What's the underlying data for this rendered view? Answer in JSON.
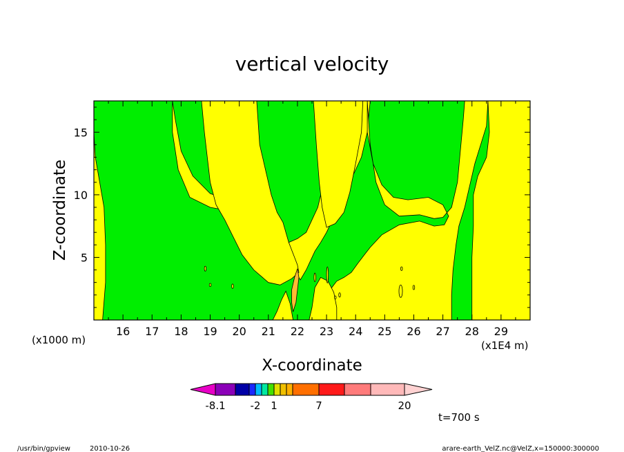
{
  "chart_data": {
    "type": "contour",
    "title": "vertical velocity",
    "xlabel": "X-coordinate",
    "ylabel": "Z-coordinate",
    "x_unit": "(x1E4 m)",
    "y_unit": "(x1000 m)",
    "xlim": [
      15,
      30
    ],
    "ylim": [
      0,
      17.5
    ],
    "xticks": [
      16,
      17,
      18,
      19,
      20,
      21,
      22,
      23,
      24,
      25,
      26,
      27,
      28,
      29
    ],
    "yticks": [
      5,
      10,
      15
    ],
    "colors": {
      "green": "#00ee00",
      "yellow": "#ffff00",
      "orange": "#ffbb33",
      "line": "#000000"
    },
    "yellow_regions": [
      [
        [
          15,
          17.5
        ],
        [
          15,
          15
        ],
        [
          15.05,
          13
        ],
        [
          15.2,
          11
        ],
        [
          15.35,
          9
        ],
        [
          15.4,
          6
        ],
        [
          15.4,
          3
        ],
        [
          15.3,
          0
        ],
        [
          15,
          0
        ]
      ],
      [
        [
          17.7,
          17.5
        ],
        [
          17.8,
          16
        ],
        [
          18,
          13.5
        ],
        [
          18.4,
          11.5
        ],
        [
          19,
          10.1
        ],
        [
          19.6,
          9.6
        ],
        [
          20.1,
          8.6
        ],
        [
          20.4,
          7
        ],
        [
          20.7,
          5.5
        ],
        [
          21.2,
          4.5
        ],
        [
          21.6,
          3.8
        ],
        [
          22,
          3.6
        ],
        [
          22.1,
          3.2
        ],
        [
          22.3,
          4
        ],
        [
          22.6,
          5.5
        ],
        [
          22.8,
          6.2
        ],
        [
          23,
          7
        ],
        [
          23.2,
          8
        ],
        [
          23.5,
          9
        ],
        [
          23.8,
          11
        ],
        [
          24.2,
          13
        ],
        [
          24.4,
          15
        ],
        [
          24.5,
          17.5
        ],
        [
          23.5,
          17.5
        ],
        [
          23.4,
          15
        ],
        [
          23.2,
          13
        ],
        [
          22.9,
          11
        ],
        [
          22.7,
          9
        ],
        [
          22.5,
          8
        ],
        [
          22.3,
          7
        ],
        [
          22.0,
          6.5
        ],
        [
          21.7,
          6.2
        ],
        [
          21.5,
          5.5
        ],
        [
          21.4,
          4.3
        ],
        [
          21.0,
          4.8
        ],
        [
          20.5,
          6
        ],
        [
          20.2,
          7.5
        ],
        [
          19.7,
          8.7
        ],
        [
          19,
          9
        ],
        [
          18.3,
          9.8
        ],
        [
          17.9,
          12
        ],
        [
          17.7,
          15
        ]
      ],
      [
        [
          20.6,
          17.5
        ],
        [
          20.7,
          14
        ],
        [
          20.9,
          12
        ],
        [
          21.1,
          10
        ],
        [
          21.3,
          8.6
        ],
        [
          21.5,
          7.8
        ],
        [
          21.7,
          6.2
        ],
        [
          21.9,
          5
        ],
        [
          22,
          4.4
        ],
        [
          22.05,
          3.8
        ],
        [
          21.8,
          3.3
        ],
        [
          21.4,
          2.8
        ],
        [
          21.0,
          3
        ],
        [
          20.5,
          4
        ],
        [
          20.1,
          5.2
        ],
        [
          19.8,
          6.6
        ],
        [
          19.5,
          8
        ],
        [
          19.2,
          9.2
        ],
        [
          19.0,
          11
        ],
        [
          18.9,
          13
        ],
        [
          18.8,
          15
        ],
        [
          18.7,
          17.5
        ]
      ],
      [
        [
          22.55,
          17.5
        ],
        [
          22.65,
          14
        ],
        [
          22.75,
          11
        ],
        [
          22.85,
          9
        ],
        [
          23.0,
          7.4
        ],
        [
          23.3,
          7.7
        ],
        [
          23.6,
          8.6
        ],
        [
          23.8,
          10.2
        ],
        [
          24.0,
          12.5
        ],
        [
          24.2,
          15
        ],
        [
          24.25,
          17.5
        ],
        [
          22.55,
          17.5
        ]
      ],
      [
        [
          24.4,
          17.5
        ],
        [
          24.5,
          14
        ],
        [
          24.7,
          11
        ],
        [
          25,
          9.2
        ],
        [
          25.5,
          8.3
        ],
        [
          26.2,
          8.4
        ],
        [
          26.7,
          8.1
        ],
        [
          27,
          8.2
        ],
        [
          27.3,
          9
        ],
        [
          27.5,
          11
        ],
        [
          27.6,
          13.5
        ],
        [
          27.7,
          16
        ],
        [
          27.75,
          17.5
        ],
        [
          28.55,
          17.5
        ],
        [
          28.5,
          15.5
        ],
        [
          28.1,
          12.5
        ],
        [
          27.9,
          10.5
        ],
        [
          27.75,
          9
        ],
        [
          27.55,
          7.5
        ],
        [
          27.45,
          6
        ],
        [
          27.35,
          4
        ],
        [
          27.3,
          2
        ],
        [
          27.3,
          0
        ],
        [
          23.05,
          0
        ],
        [
          23.05,
          1.5
        ],
        [
          23.15,
          2.5
        ],
        [
          23.35,
          3.1
        ],
        [
          23.6,
          3.4
        ],
        [
          23.85,
          3.8
        ],
        [
          24.1,
          4.6
        ],
        [
          24.3,
          5.2
        ],
        [
          24.5,
          5.8
        ],
        [
          24.9,
          6.8
        ],
        [
          25.5,
          7.6
        ],
        [
          26.2,
          7.9
        ],
        [
          26.7,
          7.5
        ],
        [
          27.05,
          7.6
        ],
        [
          27.2,
          8.3
        ],
        [
          27.0,
          9.2
        ],
        [
          26.5,
          9.8
        ],
        [
          25.8,
          9.6
        ],
        [
          25.3,
          9.8
        ],
        [
          24.9,
          10.8
        ],
        [
          24.6,
          12.5
        ],
        [
          24.4,
          15
        ]
      ],
      [
        [
          28.55,
          17.5
        ],
        [
          28.6,
          15
        ],
        [
          28.5,
          13
        ],
        [
          28.2,
          11.5
        ],
        [
          28.05,
          10
        ],
        [
          28.05,
          7.5
        ],
        [
          28.0,
          5
        ],
        [
          28.0,
          2
        ],
        [
          28.0,
          0
        ],
        [
          30,
          0
        ],
        [
          30,
          17.5
        ]
      ],
      [
        [
          21.15,
          0
        ],
        [
          21.3,
          0.7
        ],
        [
          21.45,
          1.6
        ],
        [
          21.6,
          2.3
        ],
        [
          21.75,
          1.3
        ],
        [
          21.85,
          0
        ],
        [
          21.15,
          0
        ]
      ],
      [
        [
          22.4,
          0
        ],
        [
          22.5,
          1.0
        ],
        [
          22.6,
          2.6
        ],
        [
          22.8,
          3.4
        ],
        [
          23.05,
          3.1
        ],
        [
          23.25,
          2.2
        ],
        [
          23.35,
          1.0
        ],
        [
          23.35,
          0
        ],
        [
          22.4,
          0
        ]
      ]
    ],
    "orange_regions": [
      [
        [
          21.85,
          0.65
        ],
        [
          21.95,
          1.4
        ],
        [
          22.0,
          2.4
        ],
        [
          22.05,
          3.4
        ],
        [
          22.0,
          4.1
        ],
        [
          21.9,
          3.4
        ],
        [
          21.8,
          2.4
        ],
        [
          21.8,
          1.4
        ],
        [
          21.85,
          0.65
        ]
      ]
    ],
    "small_cells": [
      [
        18.83,
        4.1,
        0.03,
        0.4
      ],
      [
        19.0,
        2.8,
        0.03,
        0.25
      ],
      [
        19.77,
        2.7,
        0.03,
        0.35
      ],
      [
        22.6,
        3.4,
        0.03,
        0.7
      ],
      [
        23.03,
        3.6,
        0.03,
        1.3
      ],
      [
        23.3,
        1.8,
        0.03,
        0.25
      ],
      [
        23.45,
        2.0,
        0.03,
        0.35
      ],
      [
        25.58,
        4.1,
        0.03,
        0.3
      ],
      [
        25.55,
        2.3,
        0.06,
        1.0
      ],
      [
        26.0,
        2.6,
        0.03,
        0.35
      ]
    ],
    "colorbar": {
      "tick_labels": [
        "-8.1",
        "-2",
        "1",
        "7",
        "20"
      ],
      "segment_colors": [
        "#e800c6",
        "#8b00b8",
        "#0000a6",
        "#1a28ff",
        "#00bbff",
        "#00e8a0",
        "#44e000",
        "#e0e000",
        "#f0c000",
        "#ffb000",
        "#ff6f00",
        "#ff1a1a",
        "#ff7b7b",
        "#ffb9b9",
        "#ffd2d2"
      ]
    },
    "time_label": "t=700 s"
  },
  "footer": {
    "left_path": "/usr/bin/gpview",
    "left_date": "2010-10-26",
    "right": "arare-earth_VelZ.nc@VelZ,x=150000:300000"
  }
}
